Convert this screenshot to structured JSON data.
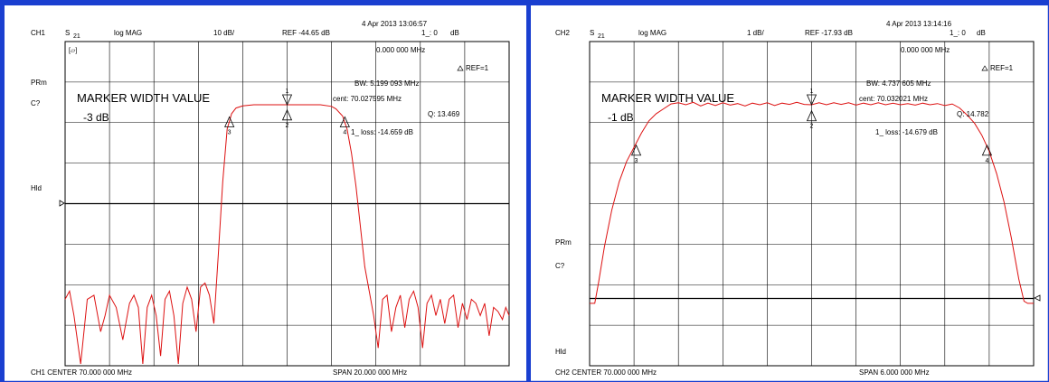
{
  "chart_data": [
    {
      "type": "line",
      "channel": "CH1",
      "parameter": "S",
      "parameter_sub": "21",
      "format": "log MAG",
      "scale": "10 dB/",
      "ref": "REF -44.65 dB",
      "timestamp": "4 Apr 2013  13:06:57",
      "marker_readout_label": "1_: 0",
      "marker_readout_unit": "dB",
      "marker_freq": "0.000 000 MHz",
      "ref_marker": "REF=1",
      "bw": "BW:      5.199 093 MHz",
      "cent": "cent:  70.027595 MHz",
      "q": "Q: 13.469",
      "loss": "1_  loss:  -14.659 dB",
      "width_title": "MARKER WIDTH VALUE",
      "width_value": "-3 dB",
      "side_labels": [
        "PRm",
        "C?",
        "Hld"
      ],
      "tag": "[▱]",
      "footer_left": "CH1 CENTER  70.000 000 MHz",
      "footer_right": "SPAN   20.000 000 MHz",
      "center_mhz": 70.0,
      "span_mhz": 20.0,
      "scale_db_per_div": 10,
      "grid_divisions": [
        10,
        8
      ],
      "grid": true,
      "trace_color": "#dd1111",
      "markers": [
        {
          "label": "1",
          "x": 0.0,
          "y": 0.0,
          "direction": "down"
        },
        {
          "label": "2",
          "x": 0.0,
          "y": -1.3,
          "direction": "up"
        },
        {
          "label": "3",
          "x": -2.6,
          "y": -3.0,
          "direction": "up"
        },
        {
          "label": "4",
          "x": 2.6,
          "y": -3.0,
          "direction": "up"
        }
      ],
      "trace": [
        {
          "x": -10.0,
          "y": -48
        },
        {
          "x": -9.8,
          "y": -46
        },
        {
          "x": -9.6,
          "y": -52
        },
        {
          "x": -9.3,
          "y": -68
        },
        {
          "x": -9.0,
          "y": -48
        },
        {
          "x": -8.7,
          "y": -47
        },
        {
          "x": -8.4,
          "y": -56
        },
        {
          "x": -8.2,
          "y": -52
        },
        {
          "x": -8.0,
          "y": -47
        },
        {
          "x": -7.7,
          "y": -50
        },
        {
          "x": -7.4,
          "y": -58
        },
        {
          "x": -7.1,
          "y": -49
        },
        {
          "x": -6.9,
          "y": -47
        },
        {
          "x": -6.7,
          "y": -50
        },
        {
          "x": -6.5,
          "y": -64
        },
        {
          "x": -6.3,
          "y": -50
        },
        {
          "x": -6.1,
          "y": -47
        },
        {
          "x": -5.9,
          "y": -52
        },
        {
          "x": -5.7,
          "y": -62
        },
        {
          "x": -5.5,
          "y": -48
        },
        {
          "x": -5.3,
          "y": -46
        },
        {
          "x": -5.1,
          "y": -52
        },
        {
          "x": -4.9,
          "y": -72
        },
        {
          "x": -4.7,
          "y": -49
        },
        {
          "x": -4.5,
          "y": -45
        },
        {
          "x": -4.3,
          "y": -48
        },
        {
          "x": -4.1,
          "y": -56
        },
        {
          "x": -3.9,
          "y": -45
        },
        {
          "x": -3.7,
          "y": -44
        },
        {
          "x": -3.5,
          "y": -47
        },
        {
          "x": -3.3,
          "y": -54
        },
        {
          "x": -3.1,
          "y": -37
        },
        {
          "x": -2.9,
          "y": -19
        },
        {
          "x": -2.7,
          "y": -6
        },
        {
          "x": -2.5,
          "y": -2.2
        },
        {
          "x": -2.3,
          "y": -0.8
        },
        {
          "x": -2.0,
          "y": -0.3
        },
        {
          "x": -1.5,
          "y": 0.0
        },
        {
          "x": -1.0,
          "y": 0.0
        },
        {
          "x": -0.5,
          "y": 0.0
        },
        {
          "x": 0.0,
          "y": 0.0
        },
        {
          "x": 0.5,
          "y": 0.0
        },
        {
          "x": 1.0,
          "y": 0.0
        },
        {
          "x": 1.5,
          "y": 0.0
        },
        {
          "x": 2.0,
          "y": -0.4
        },
        {
          "x": 2.2,
          "y": -1.0
        },
        {
          "x": 2.5,
          "y": -2.8
        },
        {
          "x": 2.7,
          "y": -6
        },
        {
          "x": 2.9,
          "y": -12
        },
        {
          "x": 3.1,
          "y": -20
        },
        {
          "x": 3.3,
          "y": -30
        },
        {
          "x": 3.5,
          "y": -40
        },
        {
          "x": 3.7,
          "y": -46
        },
        {
          "x": 3.9,
          "y": -52
        },
        {
          "x": 4.1,
          "y": -60
        },
        {
          "x": 4.3,
          "y": -48
        },
        {
          "x": 4.5,
          "y": -47
        },
        {
          "x": 4.7,
          "y": -56
        },
        {
          "x": 4.9,
          "y": -50
        },
        {
          "x": 5.1,
          "y": -47
        },
        {
          "x": 5.3,
          "y": -55
        },
        {
          "x": 5.5,
          "y": -48
        },
        {
          "x": 5.7,
          "y": -46
        },
        {
          "x": 5.9,
          "y": -50
        },
        {
          "x": 6.1,
          "y": -60
        },
        {
          "x": 6.3,
          "y": -49
        },
        {
          "x": 6.5,
          "y": -47
        },
        {
          "x": 6.7,
          "y": -52
        },
        {
          "x": 6.9,
          "y": -48
        },
        {
          "x": 7.1,
          "y": -54
        },
        {
          "x": 7.3,
          "y": -48
        },
        {
          "x": 7.5,
          "y": -47
        },
        {
          "x": 7.7,
          "y": -55
        },
        {
          "x": 7.9,
          "y": -49
        },
        {
          "x": 8.1,
          "y": -53
        },
        {
          "x": 8.3,
          "y": -48
        },
        {
          "x": 8.5,
          "y": -49
        },
        {
          "x": 8.7,
          "y": -52
        },
        {
          "x": 8.9,
          "y": -49
        },
        {
          "x": 9.1,
          "y": -57
        },
        {
          "x": 9.3,
          "y": -50
        },
        {
          "x": 9.5,
          "y": -51
        },
        {
          "x": 9.7,
          "y": -53
        },
        {
          "x": 9.85,
          "y": -50
        },
        {
          "x": 10.0,
          "y": -52
        }
      ]
    },
    {
      "type": "line",
      "channel": "CH2",
      "parameter": "S",
      "parameter_sub": "21",
      "format": "log MAG",
      "scale": "1 dB/",
      "ref": "REF -17.93 dB",
      "timestamp": "4 Apr 2013  13:14:16",
      "marker_readout_label": "1_: 0",
      "marker_readout_unit": "dB",
      "marker_freq": "0.000 000 MHz",
      "ref_marker": "REF=1",
      "bw": "BW:    4.737 605 MHz",
      "cent": "cent:  70.032021 MHz",
      "q": "Q: 14.782",
      "loss": "1_  loss:  -14.679 dB",
      "width_title": "MARKER WIDTH VALUE",
      "width_value": "-1 dB",
      "side_labels": [
        "PRm",
        "C?",
        "Hld"
      ],
      "footer_left": "CH2 CENTER   70.000 000 MHz",
      "footer_right": "SPAN    6.000 000 MHz",
      "center_mhz": 70.0,
      "span_mhz": 6.0,
      "scale_db_per_div": 1,
      "grid_divisions": [
        10,
        8
      ],
      "grid": true,
      "trace_color": "#dd1111",
      "markers": [
        {
          "label": "1",
          "x": 0.0,
          "y": 0.0,
          "direction": "down"
        },
        {
          "label": "2",
          "x": 0.0,
          "y": -0.15,
          "direction": "up"
        },
        {
          "label": "3",
          "x": -2.37,
          "y": -1.0,
          "direction": "up"
        },
        {
          "label": "4",
          "x": 2.37,
          "y": -1.0,
          "direction": "up"
        }
      ],
      "trace": [
        {
          "x": -3.0,
          "y": -4.9
        },
        {
          "x": -2.93,
          "y": -4.9
        },
        {
          "x": -2.88,
          "y": -4.4
        },
        {
          "x": -2.8,
          "y": -3.5
        },
        {
          "x": -2.7,
          "y": -2.6
        },
        {
          "x": -2.6,
          "y": -1.9
        },
        {
          "x": -2.5,
          "y": -1.4
        },
        {
          "x": -2.4,
          "y": -1.05
        },
        {
          "x": -2.3,
          "y": -0.7
        },
        {
          "x": -2.2,
          "y": -0.4
        },
        {
          "x": -2.1,
          "y": -0.22
        },
        {
          "x": -2.0,
          "y": -0.1
        },
        {
          "x": -1.9,
          "y": 0.02
        },
        {
          "x": -1.8,
          "y": 0.05
        },
        {
          "x": -1.7,
          "y": 0.0
        },
        {
          "x": -1.6,
          "y": 0.06
        },
        {
          "x": -1.5,
          "y": -0.03
        },
        {
          "x": -1.4,
          "y": 0.04
        },
        {
          "x": -1.3,
          "y": -0.02
        },
        {
          "x": -1.2,
          "y": 0.05
        },
        {
          "x": -1.1,
          "y": -0.01
        },
        {
          "x": -1.0,
          "y": 0.03
        },
        {
          "x": -0.9,
          "y": -0.03
        },
        {
          "x": -0.8,
          "y": 0.04
        },
        {
          "x": -0.7,
          "y": 0.0
        },
        {
          "x": -0.6,
          "y": 0.05
        },
        {
          "x": -0.5,
          "y": -0.02
        },
        {
          "x": -0.4,
          "y": 0.04
        },
        {
          "x": -0.3,
          "y": 0.01
        },
        {
          "x": -0.2,
          "y": 0.06
        },
        {
          "x": -0.1,
          "y": 0.01
        },
        {
          "x": 0.0,
          "y": 0.0
        },
        {
          "x": 0.1,
          "y": 0.05
        },
        {
          "x": 0.2,
          "y": 0.0
        },
        {
          "x": 0.3,
          "y": 0.05
        },
        {
          "x": 0.4,
          "y": 0.01
        },
        {
          "x": 0.5,
          "y": 0.05
        },
        {
          "x": 0.6,
          "y": -0.01
        },
        {
          "x": 0.7,
          "y": 0.04
        },
        {
          "x": 0.8,
          "y": 0.0
        },
        {
          "x": 0.9,
          "y": 0.05
        },
        {
          "x": 1.0,
          "y": 0.0
        },
        {
          "x": 1.1,
          "y": 0.04
        },
        {
          "x": 1.2,
          "y": 0.0
        },
        {
          "x": 1.3,
          "y": 0.03
        },
        {
          "x": 1.4,
          "y": -0.01
        },
        {
          "x": 1.5,
          "y": 0.04
        },
        {
          "x": 1.6,
          "y": 0.0
        },
        {
          "x": 1.7,
          "y": 0.03
        },
        {
          "x": 1.8,
          "y": -0.02
        },
        {
          "x": 1.9,
          "y": 0.02
        },
        {
          "x": 2.0,
          "y": -0.08
        },
        {
          "x": 2.1,
          "y": -0.25
        },
        {
          "x": 2.2,
          "y": -0.45
        },
        {
          "x": 2.3,
          "y": -0.75
        },
        {
          "x": 2.4,
          "y": -1.15
        },
        {
          "x": 2.5,
          "y": -1.7
        },
        {
          "x": 2.6,
          "y": -2.4
        },
        {
          "x": 2.7,
          "y": -3.3
        },
        {
          "x": 2.8,
          "y": -4.3
        },
        {
          "x": 2.87,
          "y": -4.85
        },
        {
          "x": 2.92,
          "y": -4.9
        },
        {
          "x": 3.0,
          "y": -4.9
        }
      ]
    }
  ]
}
